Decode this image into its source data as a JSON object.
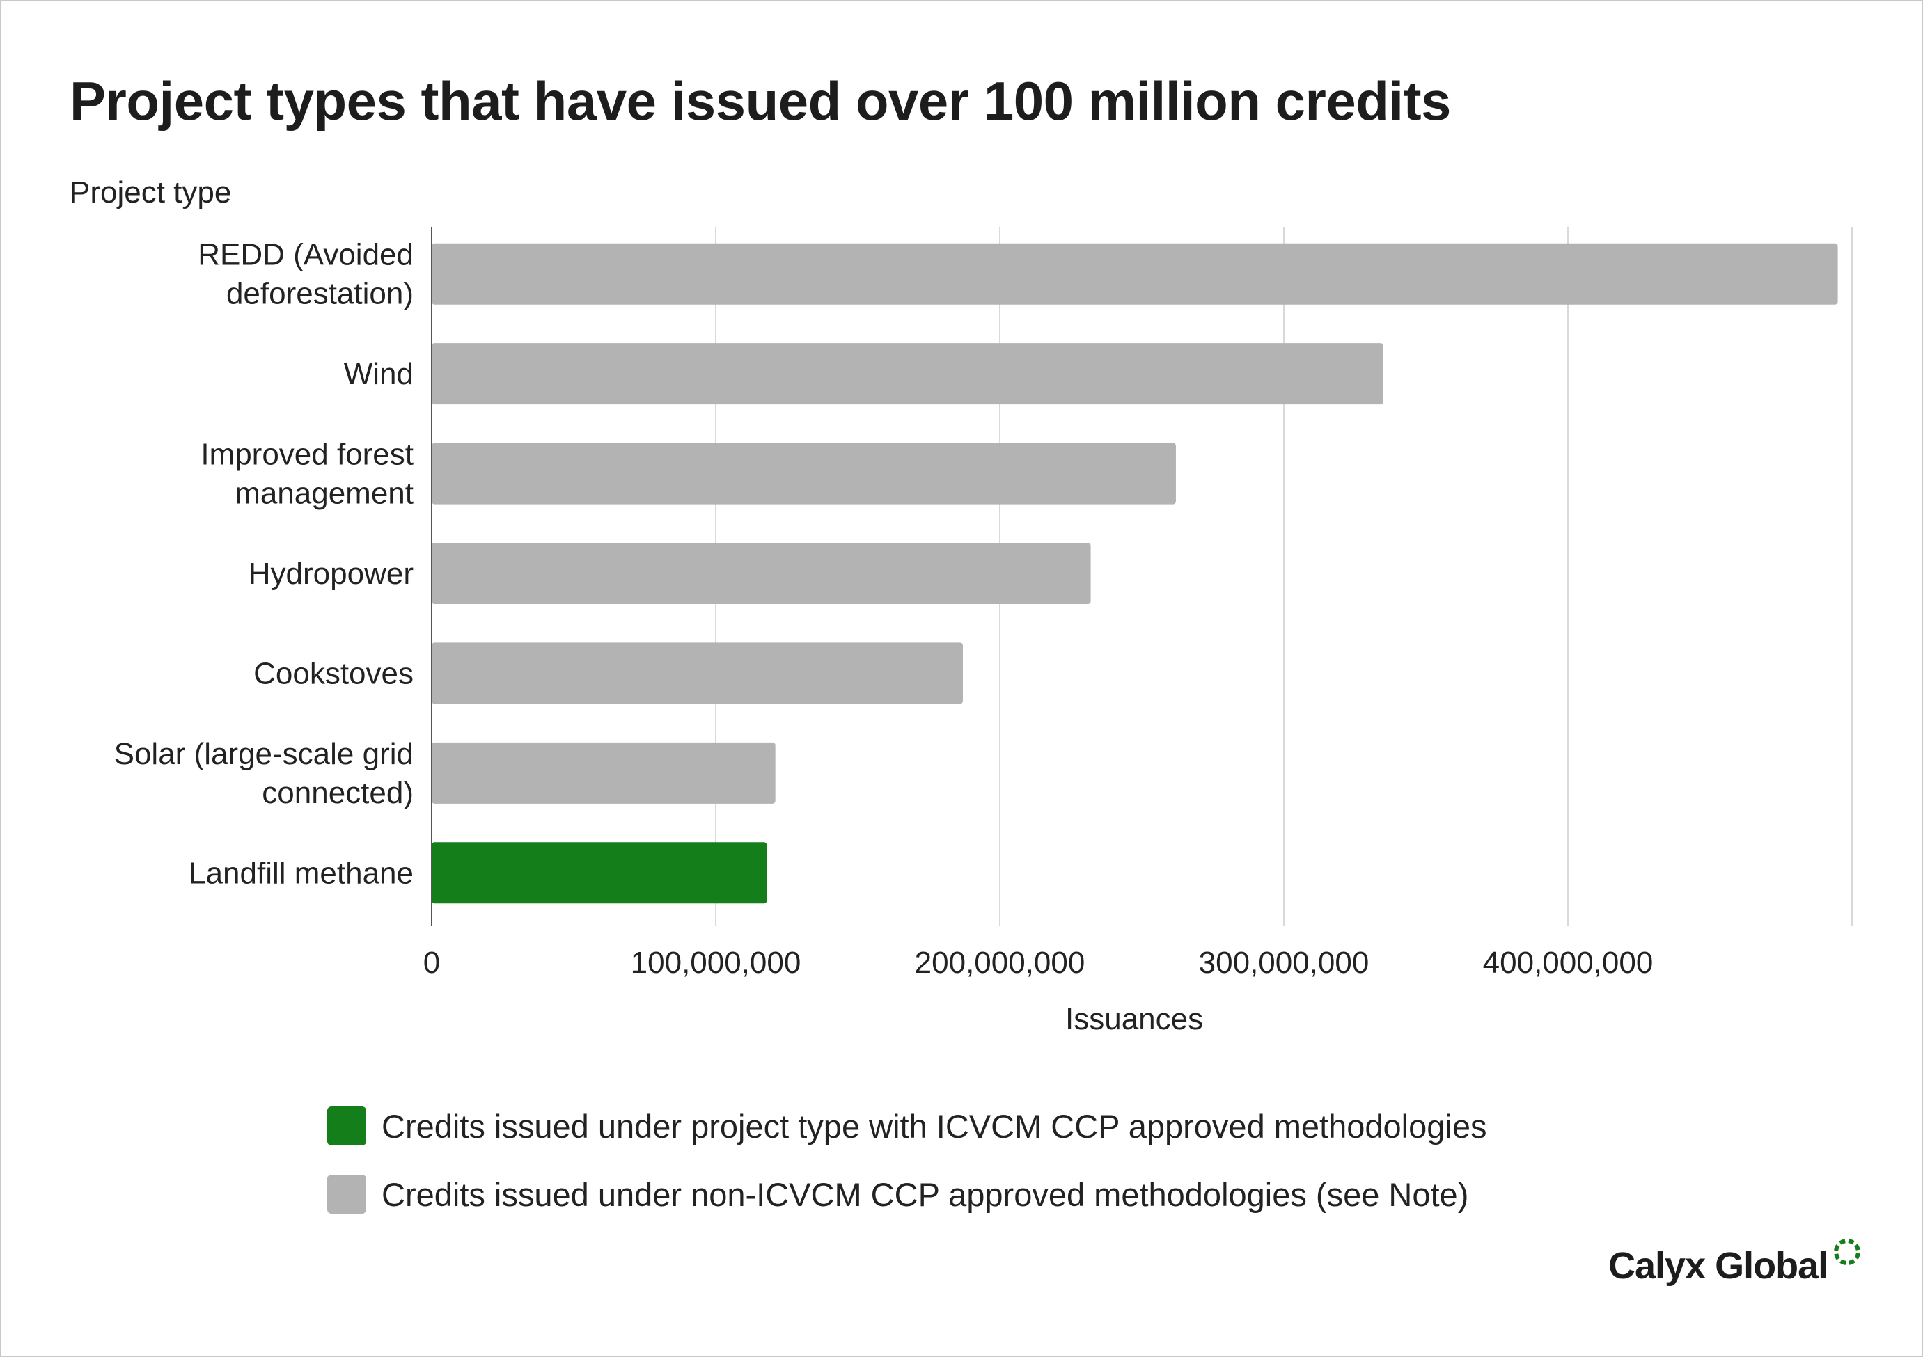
{
  "title": "Project types that have issued over 100 million credits",
  "chart_data": {
    "type": "bar",
    "orientation": "horizontal",
    "ylabel": "Project type",
    "xlabel": "Issuances",
    "categories": [
      [
        "REDD (Avoided",
        "deforestation)"
      ],
      [
        "Wind"
      ],
      [
        "Improved forest",
        "management"
      ],
      [
        "Hydropower"
      ],
      [
        "Cookstoves"
      ],
      [
        "Solar (large-scale grid",
        "connected)"
      ],
      [
        "Landfill methane"
      ]
    ],
    "values": [
      495000000,
      335000000,
      262000000,
      232000000,
      187000000,
      121000000,
      118000000
    ],
    "bar_colors": [
      "#b3b3b3",
      "#b3b3b3",
      "#b3b3b3",
      "#b3b3b3",
      "#b3b3b3",
      "#b3b3b3",
      "#137e1a"
    ],
    "xlim": [
      0,
      500000000
    ],
    "xticks": [
      0,
      100000000,
      200000000,
      300000000,
      400000000
    ],
    "xtick_labels": [
      "0",
      "100,000,000",
      "200,000,000",
      "300,000,000",
      "400,000,000"
    ],
    "grid": "vertical",
    "legend_placement": "bottom",
    "legend": [
      {
        "label": "Credits issued under project type with ICVCM CCP approved methodologies",
        "color": "#137e1a"
      },
      {
        "label": "Credits issued under non-ICVCM CCP approved methodologies (see Note)",
        "color": "#b3b3b3"
      }
    ]
  },
  "logo": {
    "text": "Calyx Global",
    "color": "#137e1a"
  }
}
